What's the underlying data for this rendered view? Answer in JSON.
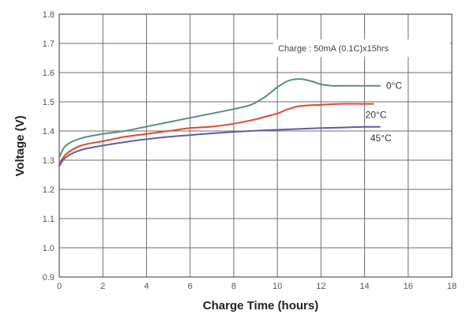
{
  "chart_data": {
    "type": "line",
    "title": "",
    "xlabel": "Charge Time (hours)",
    "ylabel": "Voltage (V)",
    "xlim": [
      0,
      18
    ],
    "ylim": [
      0.9,
      1.8
    ],
    "xticks": [
      "0",
      "2",
      "4",
      "6",
      "8",
      "10",
      "12",
      "14",
      "16",
      "18"
    ],
    "yticks": [
      "0.9",
      "1.0",
      "1.1",
      "1.2",
      "1.3",
      "1.4",
      "1.5",
      "1.6",
      "1.7",
      "1.8"
    ],
    "grid": true,
    "annotation": "Charge : 50mA (0.1C)x15hrs",
    "series": [
      {
        "name": "0°C",
        "color": "#5a8f7b",
        "x": [
          0,
          0.3,
          1,
          2,
          3,
          4,
          5,
          6,
          7,
          8,
          8.8,
          9.4,
          10,
          10.5,
          11,
          11.5,
          12,
          12.5,
          13,
          14,
          14.7
        ],
        "y": [
          1.31,
          1.35,
          1.375,
          1.39,
          1.4,
          1.415,
          1.43,
          1.445,
          1.46,
          1.475,
          1.49,
          1.515,
          1.55,
          1.572,
          1.578,
          1.572,
          1.56,
          1.555,
          1.555,
          1.555,
          1.555
        ]
      },
      {
        "name": "20°C",
        "color": "#e0492c",
        "x": [
          0,
          0.3,
          1,
          2,
          3,
          4,
          5,
          6,
          7,
          8,
          9,
          9.5,
          10,
          10.5,
          11,
          12,
          13,
          14,
          14.4
        ],
        "y": [
          1.285,
          1.32,
          1.35,
          1.365,
          1.38,
          1.39,
          1.4,
          1.41,
          1.415,
          1.425,
          1.44,
          1.45,
          1.46,
          1.475,
          1.485,
          1.49,
          1.493,
          1.493,
          1.493
        ]
      },
      {
        "name": "45°C",
        "color": "#5b5ea6",
        "x": [
          0,
          0.3,
          1,
          2,
          3,
          4,
          5,
          6,
          7,
          8,
          9,
          10,
          11,
          12,
          13,
          14,
          14.7
        ],
        "y": [
          1.28,
          1.31,
          1.335,
          1.35,
          1.362,
          1.372,
          1.38,
          1.386,
          1.392,
          1.397,
          1.401,
          1.404,
          1.407,
          1.41,
          1.412,
          1.414,
          1.414
        ]
      }
    ]
  },
  "colors": {
    "background": "#ffffff",
    "grid": "#6d6d6d",
    "annotation_box": "#ffffff"
  }
}
